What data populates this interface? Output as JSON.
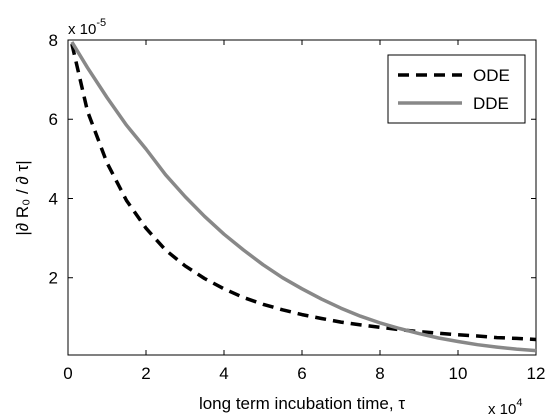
{
  "chart_data": {
    "type": "line",
    "xlabel": "long term incubation time, τ",
    "ylabel": "|∂ R₀ / ∂ τ|",
    "x_multiplier": {
      "base": "x 10",
      "exp": "4"
    },
    "y_multiplier": {
      "base": "x 10",
      "exp": "-5"
    },
    "xlim": [
      0,
      12
    ],
    "ylim": [
      0.05,
      8
    ],
    "xticks": [
      0,
      2,
      4,
      6,
      8,
      10,
      12
    ],
    "yticks": [
      2,
      4,
      6,
      8
    ],
    "grid": false,
    "legend_position": "top-right",
    "x": [
      0.1,
      0.5,
      1,
      1.5,
      2,
      2.5,
      3,
      3.5,
      4,
      4.5,
      5,
      5.5,
      6,
      6.5,
      7,
      7.5,
      8,
      8.5,
      9,
      9.5,
      10,
      10.5,
      11,
      11.5,
      12
    ],
    "series": [
      {
        "name": "ODE",
        "style": "dashed",
        "color": "#000000",
        "values": [
          7.9,
          6.2,
          4.9,
          3.95,
          3.25,
          2.7,
          2.3,
          1.98,
          1.72,
          1.5,
          1.33,
          1.19,
          1.07,
          0.97,
          0.88,
          0.81,
          0.75,
          0.69,
          0.64,
          0.6,
          0.56,
          0.53,
          0.49,
          0.47,
          0.44
        ]
      },
      {
        "name": "DDE",
        "style": "solid",
        "color": "#888888",
        "values": [
          7.95,
          7.3,
          6.55,
          5.85,
          5.25,
          4.6,
          4.05,
          3.55,
          3.1,
          2.7,
          2.33,
          2.0,
          1.72,
          1.46,
          1.23,
          1.03,
          0.86,
          0.72,
          0.59,
          0.48,
          0.39,
          0.31,
          0.25,
          0.2,
          0.16
        ]
      }
    ]
  }
}
